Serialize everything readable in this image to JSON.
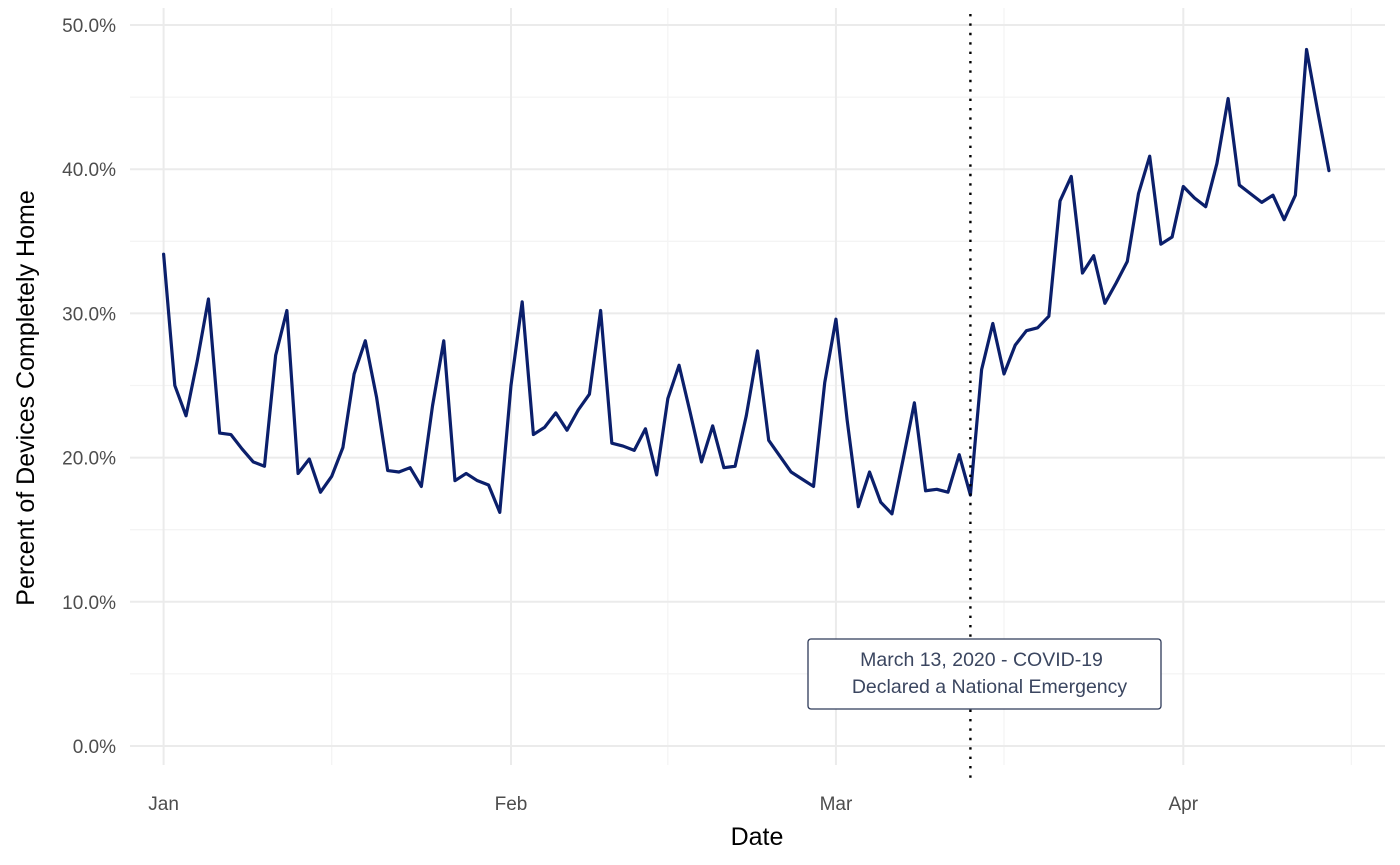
{
  "chart_data": {
    "type": "line",
    "xlabel": "Date",
    "ylabel": "Percent of Devices Completely Home",
    "ylim": [
      0,
      50
    ],
    "y_ticks": [
      {
        "value": 0,
        "label": "0.0%"
      },
      {
        "value": 10,
        "label": "10.0%"
      },
      {
        "value": 20,
        "label": "20.0%"
      },
      {
        "value": 30,
        "label": "30.0%"
      },
      {
        "value": 40,
        "label": "40.0%"
      },
      {
        "value": 50,
        "label": "50.0%"
      }
    ],
    "xlim": [
      "2019-12-29",
      "2020-04-19"
    ],
    "x_ticks": [
      {
        "value": "2020-01-01",
        "label": "Jan"
      },
      {
        "value": "2020-02-01",
        "label": "Feb"
      },
      {
        "value": "2020-03-01",
        "label": "Mar"
      },
      {
        "value": "2020-04-01",
        "label": "Apr"
      }
    ],
    "x_minor_ticks": [
      "2020-01-16",
      "2020-02-15",
      "2020-03-16",
      "2020-04-16"
    ],
    "grid": true,
    "line_color": "#0b1f6b",
    "series": [
      {
        "x": [
          "2020-01-01",
          "2020-01-02",
          "2020-01-03",
          "2020-01-04",
          "2020-01-05",
          "2020-01-06",
          "2020-01-07",
          "2020-01-08",
          "2020-01-09",
          "2020-01-10",
          "2020-01-11",
          "2020-01-12",
          "2020-01-13",
          "2020-01-14",
          "2020-01-15",
          "2020-01-16",
          "2020-01-17",
          "2020-01-18",
          "2020-01-19",
          "2020-01-20",
          "2020-01-21",
          "2020-01-22",
          "2020-01-23",
          "2020-01-24",
          "2020-01-25",
          "2020-01-26",
          "2020-01-27",
          "2020-01-28",
          "2020-01-29",
          "2020-01-30",
          "2020-01-31",
          "2020-02-01",
          "2020-02-02",
          "2020-02-03",
          "2020-02-04",
          "2020-02-05",
          "2020-02-06",
          "2020-02-07",
          "2020-02-08",
          "2020-02-09",
          "2020-02-10",
          "2020-02-11",
          "2020-02-12",
          "2020-02-13",
          "2020-02-14",
          "2020-02-15",
          "2020-02-16",
          "2020-02-17",
          "2020-02-18",
          "2020-02-19",
          "2020-02-20",
          "2020-02-21",
          "2020-02-22",
          "2020-02-23",
          "2020-02-24",
          "2020-02-25",
          "2020-02-26",
          "2020-02-27",
          "2020-02-28",
          "2020-02-29",
          "2020-03-01",
          "2020-03-02",
          "2020-03-03",
          "2020-03-04",
          "2020-03-05",
          "2020-03-06",
          "2020-03-07",
          "2020-03-08",
          "2020-03-09",
          "2020-03-10",
          "2020-03-11",
          "2020-03-12",
          "2020-03-13",
          "2020-03-14",
          "2020-03-15",
          "2020-03-16",
          "2020-03-17",
          "2020-03-18",
          "2020-03-19",
          "2020-03-20",
          "2020-03-21",
          "2020-03-22",
          "2020-03-23",
          "2020-03-24",
          "2020-03-25",
          "2020-03-26",
          "2020-03-27",
          "2020-03-28",
          "2020-03-29",
          "2020-03-30",
          "2020-03-31",
          "2020-04-01",
          "2020-04-02",
          "2020-04-03",
          "2020-04-04",
          "2020-04-05",
          "2020-04-06",
          "2020-04-07",
          "2020-04-08",
          "2020-04-09",
          "2020-04-10",
          "2020-04-11",
          "2020-04-12",
          "2020-04-13",
          "2020-04-14"
        ],
        "values": [
          34.1,
          25.0,
          22.9,
          26.7,
          31.0,
          21.7,
          21.6,
          20.6,
          19.7,
          19.4,
          27.1,
          30.2,
          18.9,
          19.9,
          17.6,
          18.7,
          20.7,
          25.8,
          28.1,
          24.2,
          19.1,
          19.0,
          19.3,
          18.0,
          23.6,
          28.1,
          18.4,
          18.9,
          18.4,
          18.1,
          16.2,
          25.0,
          30.8,
          21.6,
          22.1,
          23.1,
          21.9,
          23.3,
          24.4,
          30.2,
          21.0,
          20.8,
          20.5,
          22.0,
          18.8,
          24.1,
          26.4,
          23.1,
          19.7,
          22.2,
          19.3,
          19.4,
          22.9,
          27.4,
          21.2,
          20.1,
          19.0,
          18.5,
          18.0,
          25.2,
          29.6,
          22.6,
          16.6,
          19.0,
          16.9,
          16.1,
          19.9,
          23.8,
          17.7,
          17.8,
          17.6,
          20.2,
          17.4,
          26.1,
          29.3,
          25.8,
          27.8,
          28.8,
          29.0,
          29.8,
          37.8,
          39.5,
          32.8,
          34.0,
          30.7,
          32.1,
          33.6,
          38.3,
          40.9,
          34.8,
          35.3,
          38.8,
          38.0,
          37.4,
          40.4,
          44.9,
          38.9,
          38.3,
          37.7,
          38.2,
          36.5,
          38.2,
          48.3,
          44.0,
          39.9
        ]
      }
    ],
    "annotations": [
      {
        "type": "vline",
        "x": "2020-03-13",
        "style": "dotted",
        "label_lines": [
          "March 13, 2020 - COVID-19",
          "Declared a National Emergency"
        ]
      }
    ]
  }
}
